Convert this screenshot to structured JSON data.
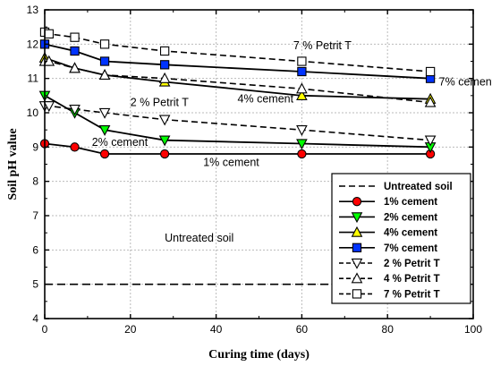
{
  "chart_data": {
    "type": "line",
    "xlabel": "Curing time (days)",
    "ylabel": "Soil pH value",
    "xlim": [
      0,
      100
    ],
    "ylim": [
      4,
      13
    ],
    "xticks": [
      "0",
      "20",
      "40",
      "60",
      "80",
      "100"
    ],
    "yticks": [
      "4",
      "5",
      "6",
      "7",
      "8",
      "9",
      "10",
      "11",
      "12",
      "13"
    ],
    "grid": true,
    "legend_position": "bottom-right",
    "series": [
      {
        "name": "Untreated soil",
        "marker": "none",
        "line": "dashed",
        "color": "#000000",
        "x": [
          0,
          90
        ],
        "y": [
          5.0,
          5.0
        ]
      },
      {
        "name": "1% cement",
        "marker": "circle",
        "line": "solid",
        "color": "#ff0000",
        "x": [
          0,
          7,
          14,
          28,
          60,
          90
        ],
        "y": [
          9.1,
          9.0,
          8.8,
          8.8,
          8.8,
          8.8
        ]
      },
      {
        "name": "2% cement",
        "marker": "triangle-down",
        "line": "solid",
        "color": "#00ff00",
        "x": [
          0,
          7,
          14,
          28,
          60,
          90
        ],
        "y": [
          10.5,
          10.0,
          9.5,
          9.2,
          9.1,
          9.0
        ]
      },
      {
        "name": "4% cement",
        "marker": "triangle-up",
        "line": "solid",
        "color": "#ffff00",
        "x": [
          0,
          7,
          14,
          28,
          60,
          90
        ],
        "y": [
          11.6,
          11.3,
          11.1,
          10.9,
          10.5,
          10.4
        ]
      },
      {
        "name": "7% cement",
        "marker": "square",
        "line": "solid",
        "color": "#0033ff",
        "x": [
          0,
          7,
          14,
          28,
          60,
          90
        ],
        "y": [
          12.0,
          11.8,
          11.5,
          11.4,
          11.2,
          11.0
        ]
      },
      {
        "name": "2 % Petrit T",
        "marker": "triangle-down",
        "line": "dashed",
        "color": "#ffffff",
        "x": [
          0,
          1,
          7,
          14,
          28,
          60,
          90
        ],
        "y": [
          10.2,
          10.2,
          10.1,
          10.0,
          9.8,
          9.5,
          9.2
        ]
      },
      {
        "name": "4 % Petrit T",
        "marker": "triangle-up",
        "line": "dashed",
        "color": "#ffffff",
        "x": [
          0,
          1,
          7,
          14,
          28,
          60,
          90
        ],
        "y": [
          11.5,
          11.5,
          11.3,
          11.1,
          11.0,
          10.7,
          10.3
        ]
      },
      {
        "name": "7 % Petrit T",
        "marker": "square",
        "line": "dashed",
        "color": "#ffffff",
        "x": [
          0,
          1,
          7,
          14,
          28,
          60,
          90
        ],
        "y": [
          12.35,
          12.3,
          12.2,
          12.0,
          11.8,
          11.5,
          11.2
        ]
      }
    ],
    "annotations": [
      {
        "text": "7 % Petrit T",
        "x": 58,
        "y": 11.85
      },
      {
        "text": "7% cement",
        "x": 92,
        "y": 10.8
      },
      {
        "text": "4% cement",
        "x": 45,
        "y": 10.3
      },
      {
        "text": "2 % Petrit T",
        "x": 20,
        "y": 10.2
      },
      {
        "text": "2% cement",
        "x": 11,
        "y": 9.03
      },
      {
        "text": "1% cement",
        "x": 37,
        "y": 8.45
      },
      {
        "text": "Untreated soil",
        "x": 28,
        "y": 6.25
      }
    ]
  }
}
